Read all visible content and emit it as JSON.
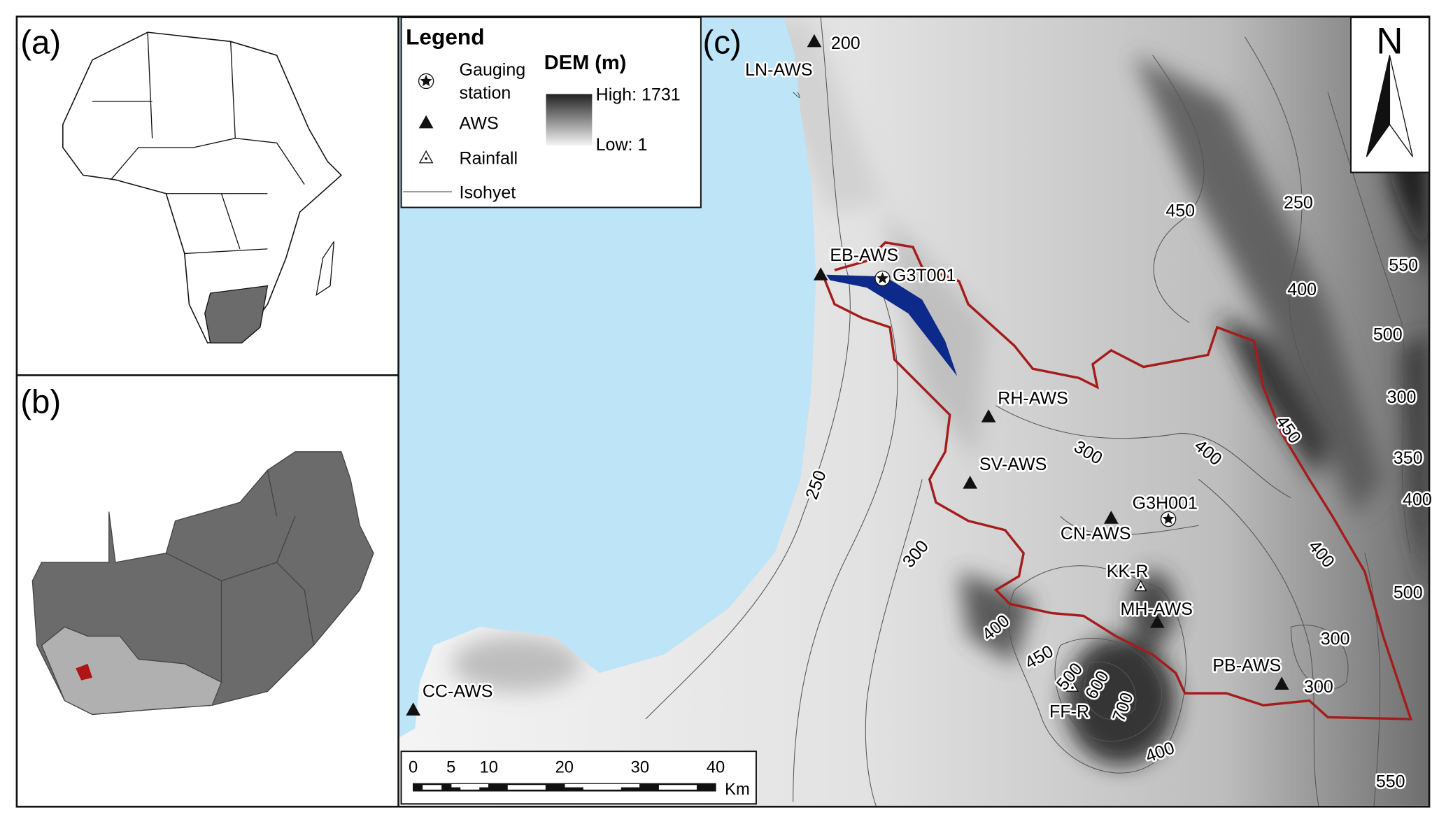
{
  "panels": {
    "a": {
      "label": "(a)"
    },
    "b": {
      "label": "(b)"
    },
    "c": {
      "label": "(c)"
    }
  },
  "legend": {
    "title": "Legend",
    "items": [
      {
        "lines": [
          "Gauging",
          "station"
        ]
      },
      {
        "lines": [
          "AWS"
        ]
      },
      {
        "lines": [
          "Rainfall"
        ]
      },
      {
        "lines": [
          "Isohyet"
        ]
      }
    ],
    "dem": {
      "title": "DEM (m)",
      "high": "High: 1731",
      "low": "Low: 1"
    }
  },
  "north": "N",
  "stations": [
    {
      "label": "LN-AWS",
      "kind": "aws"
    },
    {
      "label": "EB-AWS",
      "kind": "aws"
    },
    {
      "label": "RH-AWS",
      "kind": "aws"
    },
    {
      "label": "SV-AWS",
      "kind": "aws"
    },
    {
      "label": "CN-AWS",
      "kind": "aws"
    },
    {
      "label": "MH-AWS",
      "kind": "aws"
    },
    {
      "label": "PB-AWS",
      "kind": "aws"
    },
    {
      "label": "CC-AWS",
      "kind": "aws"
    },
    {
      "label": "G3T001",
      "kind": "gauge"
    },
    {
      "label": "G3H001",
      "kind": "gauge"
    },
    {
      "label": "KK-R",
      "kind": "rain"
    },
    {
      "label": "FF-R",
      "kind": "rain"
    }
  ],
  "isohyet_labels": [
    "200",
    "450",
    "250",
    "550",
    "400",
    "500",
    "300",
    "450",
    "350",
    "400",
    "300",
    "250",
    "300",
    "400",
    "400",
    "500",
    "300",
    "400",
    "450",
    "500",
    "600",
    "700",
    "300",
    "400",
    "550"
  ],
  "scale_bar": {
    "ticks": [
      0,
      5,
      10,
      20,
      30,
      40
    ],
    "unit": "Km"
  }
}
